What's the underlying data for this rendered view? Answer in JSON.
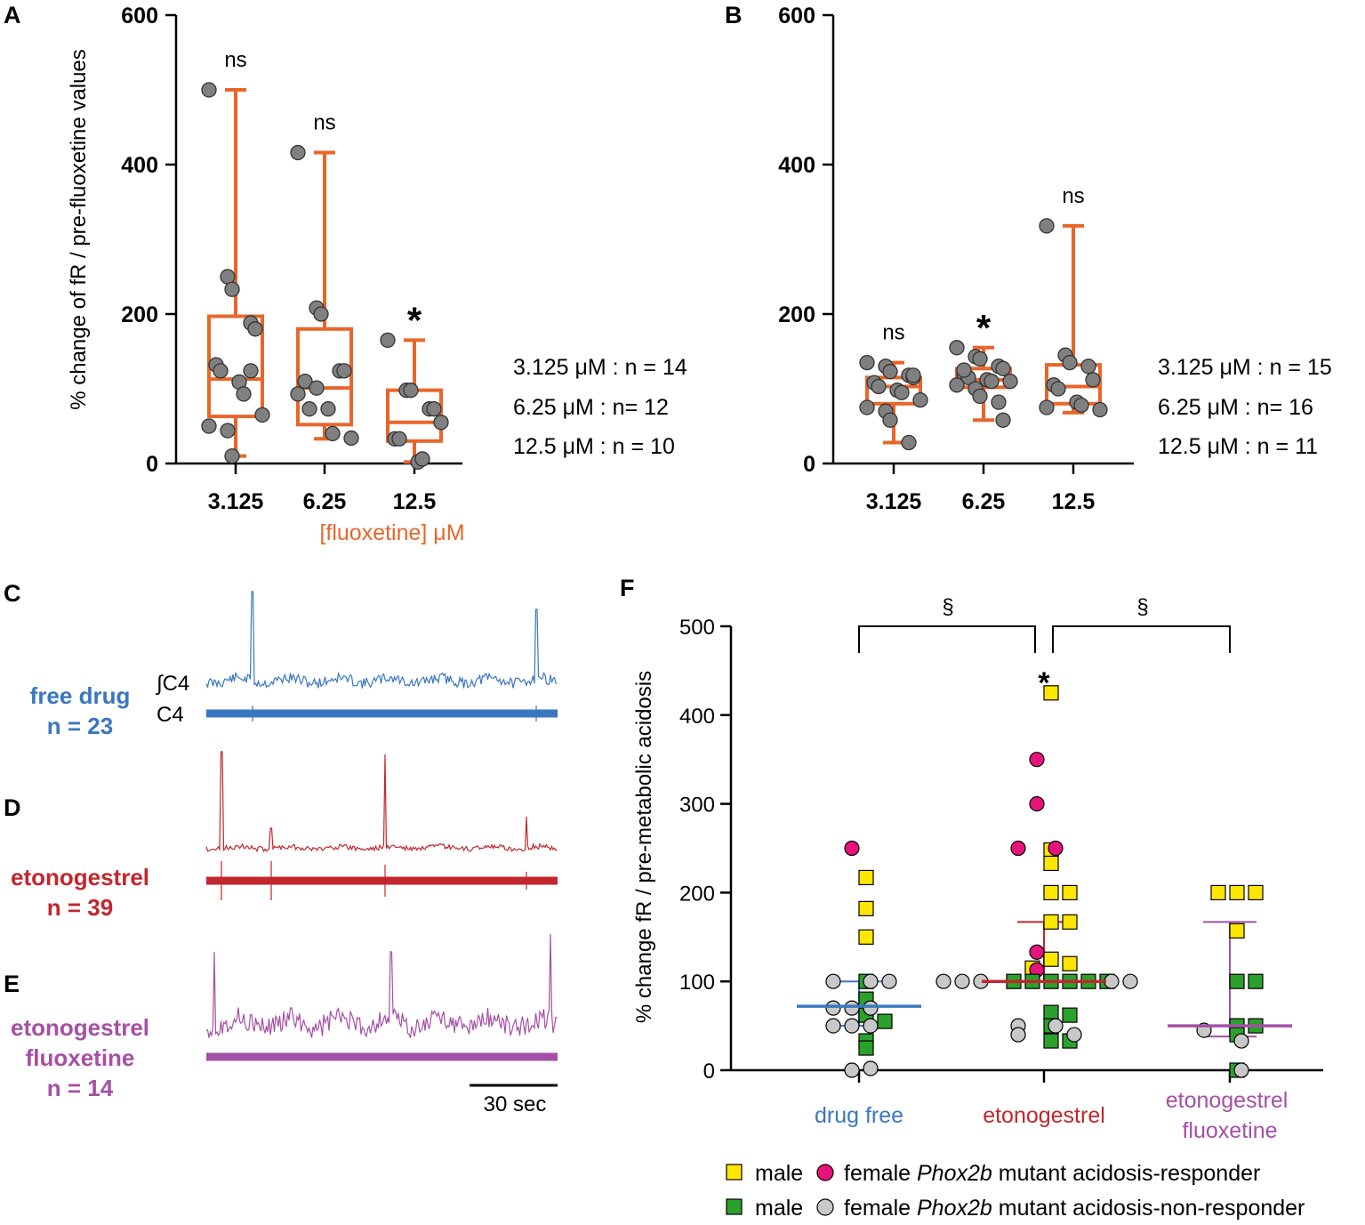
{
  "colors": {
    "orange": "#e8662a",
    "dot": "#808080",
    "blue": "#3a77c0",
    "red": "#c1272d",
    "purple": "#a550a5",
    "yellow": "#ffe600",
    "magenta": "#e6147a",
    "green": "#2ca02c",
    "lightgrey": "#c8c8c8"
  },
  "chart_data": [
    {
      "panel": "A",
      "type": "box",
      "ylabel": "% change of fR / pre-fluoxetine values",
      "xlabel": "[fluoxetine] μM",
      "ylim": [
        0,
        600
      ],
      "yticks": [
        "0",
        "200",
        "400",
        "600"
      ],
      "categories": [
        "3.125",
        "6.25",
        "12.5"
      ],
      "significance": [
        "ns",
        "ns",
        "*"
      ],
      "boxes": [
        {
          "min": 10,
          "q1": 63,
          "median": 113,
          "q3": 197,
          "max": 500
        },
        {
          "min": 33,
          "q1": 52,
          "median": 101,
          "q3": 180,
          "max": 416
        },
        {
          "min": 2,
          "q1": 30,
          "median": 55,
          "q3": 98,
          "max": 165
        }
      ],
      "points": [
        [
          500,
          250,
          233,
          188,
          180,
          132,
          124,
          109,
          93,
          65,
          50,
          44,
          10,
          124
        ],
        [
          416,
          208,
          200,
          124,
          124,
          110,
          73,
          73,
          40,
          34,
          93,
          101
        ],
        [
          165,
          98,
          98,
          73,
          73,
          33,
          33,
          2,
          6,
          55
        ]
      ],
      "n_labels": [
        "3.125 μM : n = 14",
        "6.25 μM : n= 12",
        "12.5 μM : n = 10"
      ]
    },
    {
      "panel": "B",
      "type": "box",
      "ylim": [
        0,
        600
      ],
      "yticks": [
        "0",
        "200",
        "400",
        "600"
      ],
      "categories": [
        "3.125",
        "6.25",
        "12.5"
      ],
      "significance": [
        "ns",
        "*",
        "ns"
      ],
      "boxes": [
        {
          "min": 28,
          "q1": 80,
          "median": 103,
          "q3": 115,
          "max": 135
        },
        {
          "min": 58,
          "q1": 102,
          "median": 112,
          "q3": 127,
          "max": 155
        },
        {
          "min": 68,
          "q1": 80,
          "median": 103,
          "q3": 132,
          "max": 318
        }
      ],
      "points": [
        [
          135,
          130,
          123,
          118,
          115,
          108,
          103,
          98,
          95,
          85,
          75,
          70,
          58,
          28,
          118
        ],
        [
          155,
          143,
          140,
          130,
          127,
          120,
          115,
          112,
          110,
          110,
          105,
          100,
          90,
          82,
          58,
          125
        ],
        [
          318,
          145,
          135,
          130,
          112,
          105,
          100,
          82,
          78,
          72,
          75
        ]
      ],
      "n_labels": [
        "3.125 μM : n = 15",
        "6.25 μM : n= 16",
        "12.5 μM : n = 11"
      ]
    },
    {
      "panel": "F",
      "type": "scatter",
      "ylabel": "% change fR / pre-metabolic acidosis",
      "ylim": [
        0,
        500
      ],
      "yticks": [
        "0",
        "100",
        "200",
        "300",
        "400",
        "500"
      ],
      "categories": [
        "drug free",
        "etonogestrel",
        "etonogestrel fluoxetine"
      ],
      "stat_lines": [
        {
          "median": 72,
          "low": 50,
          "high": 100
        },
        {
          "median": 100,
          "low": 100,
          "high": 167
        },
        {
          "median": 50,
          "low": 38,
          "high": 167
        }
      ],
      "significance_star": "*",
      "brackets": [
        "§",
        "§"
      ],
      "series": [
        {
          "name": "male responder",
          "marker": "square",
          "color": "yellow",
          "points": [
            [
              0,
              217
            ],
            [
              0,
              182
            ],
            [
              0,
              150
            ],
            [
              1,
              425
            ],
            [
              1,
              248
            ],
            [
              1,
              233
            ],
            [
              1,
              200
            ],
            [
              1,
              200
            ],
            [
              1,
              167
            ],
            [
              1,
              167
            ],
            [
              1,
              125
            ],
            [
              1,
              120
            ],
            [
              1,
              115
            ],
            [
              2,
              200
            ],
            [
              2,
              200
            ],
            [
              2,
              200
            ],
            [
              2,
              157
            ]
          ]
        },
        {
          "name": "female responder",
          "marker": "circle",
          "color": "magenta",
          "points": [
            [
              0,
              250
            ],
            [
              1,
              350
            ],
            [
              1,
              300
            ],
            [
              1,
              250
            ],
            [
              1,
              250
            ],
            [
              1,
              133
            ],
            [
              1,
              113
            ]
          ]
        },
        {
          "name": "male non-responder",
          "marker": "square",
          "color": "green",
          "points": [
            [
              0,
              100
            ],
            [
              0,
              80
            ],
            [
              0,
              62
            ],
            [
              0,
              55
            ],
            [
              0,
              33
            ],
            [
              0,
              25
            ],
            [
              1,
              100
            ],
            [
              1,
              100
            ],
            [
              1,
              100
            ],
            [
              1,
              100
            ],
            [
              1,
              100
            ],
            [
              1,
              100
            ],
            [
              1,
              65
            ],
            [
              1,
              62
            ],
            [
              1,
              50
            ],
            [
              1,
              33
            ],
            [
              1,
              33
            ],
            [
              2,
              100
            ],
            [
              2,
              100
            ],
            [
              2,
              50
            ],
            [
              2,
              50
            ],
            [
              2,
              40
            ],
            [
              2,
              0
            ]
          ]
        },
        {
          "name": "female non-responder",
          "marker": "circle",
          "color": "lightgrey",
          "points": [
            [
              0,
              100
            ],
            [
              0,
              100
            ],
            [
              0,
              100
            ],
            [
              0,
              70
            ],
            [
              0,
              70
            ],
            [
              0,
              70
            ],
            [
              0,
              50
            ],
            [
              0,
              50
            ],
            [
              0,
              50
            ],
            [
              0,
              0
            ],
            [
              0,
              2
            ],
            [
              1,
              100
            ],
            [
              1,
              100
            ],
            [
              1,
              100
            ],
            [
              1,
              100
            ],
            [
              1,
              100
            ],
            [
              1,
              50
            ],
            [
              1,
              50
            ],
            [
              1,
              40
            ],
            [
              1,
              40
            ],
            [
              2,
              45
            ],
            [
              2,
              33
            ],
            [
              2,
              0
            ]
          ]
        }
      ],
      "legend": {
        "row1": {
          "male": "male",
          "female": "female",
          "gene": "Phox2b",
          "rest": "mutant acidosis-responder"
        },
        "row2": {
          "male": "male",
          "female": "female",
          "gene": "Phox2b",
          "rest": "mutant acidosis-non-responder"
        }
      }
    }
  ],
  "panel_letters": {
    "a": "A",
    "b": "B",
    "c": "C",
    "d": "D",
    "e": "E",
    "f": "F"
  },
  "traces": {
    "integrated_label": "∫C4",
    "raw_label": "C4",
    "groups": [
      {
        "name": "free drug",
        "n": "n = 23"
      },
      {
        "name": "etonogestrel",
        "n": "n = 39"
      },
      {
        "name": "etonogestrel",
        "name2": "fluoxetine",
        "n": "n = 14"
      }
    ],
    "scale_bar": "30 sec"
  }
}
